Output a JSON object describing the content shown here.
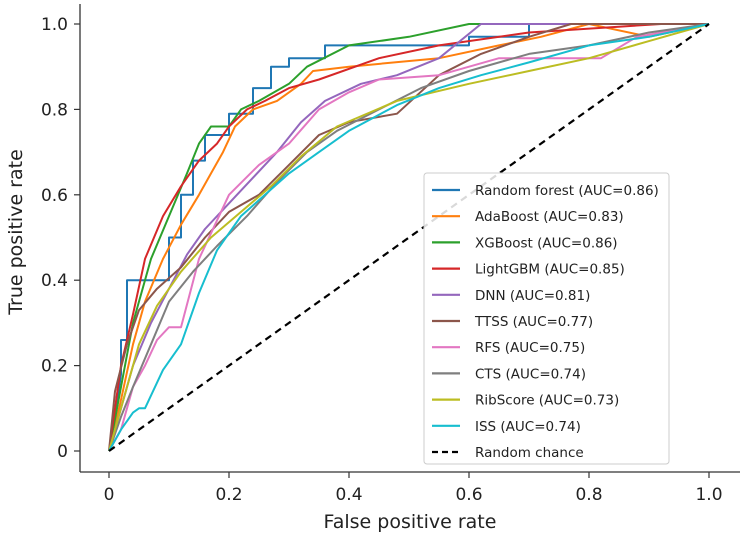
{
  "chart_data": {
    "type": "line",
    "title": "",
    "xlabel": "False positive rate",
    "ylabel": "True positive rate",
    "xlim": [
      0,
      1.0
    ],
    "ylim": [
      0,
      1.0
    ],
    "xticks": [
      {
        "value": 0,
        "label": "0"
      },
      {
        "value": 0.2,
        "label": "0.2"
      },
      {
        "value": 0.4,
        "label": "0.4"
      },
      {
        "value": 0.6,
        "label": "0.6"
      },
      {
        "value": 0.8,
        "label": "0.8"
      },
      {
        "value": 1.0,
        "label": "1.0"
      }
    ],
    "yticks": [
      {
        "value": 0,
        "label": "0"
      },
      {
        "value": 0.2,
        "label": "0.2"
      },
      {
        "value": 0.4,
        "label": "0.4"
      },
      {
        "value": 0.6,
        "label": "0.6"
      },
      {
        "value": 0.8,
        "label": "0.8"
      },
      {
        "value": 1.0,
        "label": "1.0"
      }
    ],
    "legend_position": "lower-right",
    "series": [
      {
        "name": "Random forest (AUC=0.86)",
        "color": "#1f77b4",
        "dash": "solid",
        "points": [
          [
            0,
            0
          ],
          [
            0.01,
            0.08
          ],
          [
            0.02,
            0.18
          ],
          [
            0.02,
            0.26
          ],
          [
            0.03,
            0.26
          ],
          [
            0.03,
            0.4
          ],
          [
            0.05,
            0.4
          ],
          [
            0.07,
            0.4
          ],
          [
            0.1,
            0.4
          ],
          [
            0.1,
            0.5
          ],
          [
            0.12,
            0.5
          ],
          [
            0.12,
            0.6
          ],
          [
            0.14,
            0.6
          ],
          [
            0.14,
            0.68
          ],
          [
            0.16,
            0.68
          ],
          [
            0.16,
            0.74
          ],
          [
            0.2,
            0.74
          ],
          [
            0.2,
            0.79
          ],
          [
            0.24,
            0.79
          ],
          [
            0.24,
            0.85
          ],
          [
            0.27,
            0.85
          ],
          [
            0.27,
            0.9
          ],
          [
            0.3,
            0.9
          ],
          [
            0.3,
            0.92
          ],
          [
            0.36,
            0.92
          ],
          [
            0.36,
            0.95
          ],
          [
            0.6,
            0.95
          ],
          [
            0.6,
            0.97
          ],
          [
            0.7,
            0.97
          ],
          [
            0.7,
            1.0
          ],
          [
            1.0,
            1.0
          ]
        ]
      },
      {
        "name": "AdaBoost (AUC=0.83)",
        "color": "#ff7f0e",
        "dash": "solid",
        "points": [
          [
            0,
            0
          ],
          [
            0.02,
            0.12
          ],
          [
            0.04,
            0.25
          ],
          [
            0.06,
            0.35
          ],
          [
            0.09,
            0.45
          ],
          [
            0.12,
            0.53
          ],
          [
            0.15,
            0.6
          ],
          [
            0.17,
            0.65
          ],
          [
            0.19,
            0.7
          ],
          [
            0.21,
            0.76
          ],
          [
            0.24,
            0.8
          ],
          [
            0.28,
            0.82
          ],
          [
            0.32,
            0.86
          ],
          [
            0.34,
            0.89
          ],
          [
            0.4,
            0.9
          ],
          [
            0.55,
            0.92
          ],
          [
            0.65,
            0.95
          ],
          [
            0.72,
            0.97
          ],
          [
            0.8,
            1.0
          ],
          [
            0.9,
            0.97
          ],
          [
            1.0,
            1.0
          ]
        ]
      },
      {
        "name": "XGBoost (AUC=0.86)",
        "color": "#2ca02c",
        "dash": "solid",
        "points": [
          [
            0,
            0
          ],
          [
            0.02,
            0.15
          ],
          [
            0.04,
            0.3
          ],
          [
            0.07,
            0.45
          ],
          [
            0.1,
            0.55
          ],
          [
            0.13,
            0.65
          ],
          [
            0.15,
            0.72
          ],
          [
            0.17,
            0.76
          ],
          [
            0.2,
            0.76
          ],
          [
            0.22,
            0.8
          ],
          [
            0.25,
            0.82
          ],
          [
            0.3,
            0.86
          ],
          [
            0.33,
            0.9
          ],
          [
            0.4,
            0.95
          ],
          [
            0.5,
            0.97
          ],
          [
            0.6,
            1.0
          ],
          [
            1.0,
            1.0
          ]
        ]
      },
      {
        "name": "LightGBM (AUC=0.85)",
        "color": "#d62728",
        "dash": "solid",
        "points": [
          [
            0,
            0
          ],
          [
            0.02,
            0.2
          ],
          [
            0.04,
            0.32
          ],
          [
            0.06,
            0.45
          ],
          [
            0.09,
            0.55
          ],
          [
            0.12,
            0.62
          ],
          [
            0.15,
            0.68
          ],
          [
            0.18,
            0.72
          ],
          [
            0.2,
            0.76
          ],
          [
            0.23,
            0.8
          ],
          [
            0.26,
            0.82
          ],
          [
            0.3,
            0.85
          ],
          [
            0.35,
            0.87
          ],
          [
            0.45,
            0.92
          ],
          [
            0.55,
            0.95
          ],
          [
            0.7,
            0.98
          ],
          [
            0.92,
            1.0
          ],
          [
            1.0,
            1.0
          ]
        ]
      },
      {
        "name": "DNN (AUC=0.81)",
        "color": "#9467bd",
        "dash": "solid",
        "points": [
          [
            0,
            0
          ],
          [
            0.02,
            0.1
          ],
          [
            0.04,
            0.2
          ],
          [
            0.07,
            0.3
          ],
          [
            0.1,
            0.38
          ],
          [
            0.13,
            0.46
          ],
          [
            0.16,
            0.52
          ],
          [
            0.2,
            0.58
          ],
          [
            0.24,
            0.64
          ],
          [
            0.28,
            0.7
          ],
          [
            0.32,
            0.77
          ],
          [
            0.36,
            0.82
          ],
          [
            0.42,
            0.86
          ],
          [
            0.48,
            0.88
          ],
          [
            0.55,
            0.92
          ],
          [
            0.62,
            1.0
          ],
          [
            1.0,
            1.0
          ]
        ]
      },
      {
        "name": "TTSS (AUC=0.77)",
        "color": "#8c564b",
        "dash": "solid",
        "points": [
          [
            0,
            0
          ],
          [
            0.01,
            0.14
          ],
          [
            0.03,
            0.25
          ],
          [
            0.05,
            0.33
          ],
          [
            0.08,
            0.38
          ],
          [
            0.12,
            0.43
          ],
          [
            0.16,
            0.5
          ],
          [
            0.2,
            0.56
          ],
          [
            0.25,
            0.6
          ],
          [
            0.3,
            0.67
          ],
          [
            0.35,
            0.74
          ],
          [
            0.4,
            0.77
          ],
          [
            0.48,
            0.79
          ],
          [
            0.55,
            0.88
          ],
          [
            0.62,
            0.93
          ],
          [
            0.7,
            0.97
          ],
          [
            0.77,
            1.0
          ],
          [
            1.0,
            1.0
          ]
        ]
      },
      {
        "name": "RFS (AUC=0.75)",
        "color": "#e377c2",
        "dash": "solid",
        "points": [
          [
            0,
            0
          ],
          [
            0.02,
            0.05
          ],
          [
            0.04,
            0.15
          ],
          [
            0.06,
            0.2
          ],
          [
            0.08,
            0.26
          ],
          [
            0.1,
            0.29
          ],
          [
            0.12,
            0.29
          ],
          [
            0.15,
            0.45
          ],
          [
            0.2,
            0.6
          ],
          [
            0.25,
            0.67
          ],
          [
            0.3,
            0.72
          ],
          [
            0.35,
            0.8
          ],
          [
            0.4,
            0.84
          ],
          [
            0.45,
            0.87
          ],
          [
            0.55,
            0.88
          ],
          [
            0.65,
            0.92
          ],
          [
            0.75,
            0.92
          ],
          [
            0.82,
            0.92
          ],
          [
            0.88,
            0.97
          ],
          [
            1.0,
            1.0
          ]
        ]
      },
      {
        "name": "CTS (AUC=0.74)",
        "color": "#7f7f7f",
        "dash": "solid",
        "points": [
          [
            0,
            0
          ],
          [
            0.02,
            0.08
          ],
          [
            0.04,
            0.15
          ],
          [
            0.07,
            0.25
          ],
          [
            0.1,
            0.35
          ],
          [
            0.14,
            0.42
          ],
          [
            0.18,
            0.48
          ],
          [
            0.23,
            0.55
          ],
          [
            0.28,
            0.63
          ],
          [
            0.33,
            0.7
          ],
          [
            0.38,
            0.75
          ],
          [
            0.45,
            0.8
          ],
          [
            0.52,
            0.85
          ],
          [
            0.6,
            0.89
          ],
          [
            0.7,
            0.93
          ],
          [
            0.8,
            0.95
          ],
          [
            0.9,
            0.98
          ],
          [
            1.0,
            1.0
          ]
        ]
      },
      {
        "name": "RibScore (AUC=0.73)",
        "color": "#bcbd22",
        "dash": "solid",
        "points": [
          [
            0,
            0
          ],
          [
            0.02,
            0.1
          ],
          [
            0.05,
            0.25
          ],
          [
            0.08,
            0.34
          ],
          [
            0.12,
            0.42
          ],
          [
            0.17,
            0.5
          ],
          [
            0.22,
            0.56
          ],
          [
            0.27,
            0.62
          ],
          [
            0.32,
            0.69
          ],
          [
            0.38,
            0.76
          ],
          [
            0.48,
            0.82
          ],
          [
            0.6,
            0.86
          ],
          [
            0.7,
            0.89
          ],
          [
            0.8,
            0.92
          ],
          [
            0.9,
            0.96
          ],
          [
            1.0,
            1.0
          ]
        ]
      },
      {
        "name": "ISS (AUC=0.74)",
        "color": "#17becf",
        "dash": "solid",
        "points": [
          [
            0,
            0
          ],
          [
            0.02,
            0.05
          ],
          [
            0.04,
            0.09
          ],
          [
            0.05,
            0.1
          ],
          [
            0.06,
            0.1
          ],
          [
            0.09,
            0.19
          ],
          [
            0.12,
            0.25
          ],
          [
            0.15,
            0.37
          ],
          [
            0.18,
            0.47
          ],
          [
            0.22,
            0.55
          ],
          [
            0.26,
            0.6
          ],
          [
            0.3,
            0.65
          ],
          [
            0.35,
            0.7
          ],
          [
            0.4,
            0.75
          ],
          [
            0.48,
            0.81
          ],
          [
            0.55,
            0.85
          ],
          [
            0.62,
            0.88
          ],
          [
            0.7,
            0.91
          ],
          [
            0.8,
            0.95
          ],
          [
            0.9,
            0.97
          ],
          [
            1.0,
            1.0
          ]
        ]
      },
      {
        "name": "Random chance",
        "color": "#000000",
        "dash": "dashed",
        "points": [
          [
            0,
            0
          ],
          [
            1,
            1
          ]
        ]
      }
    ]
  }
}
